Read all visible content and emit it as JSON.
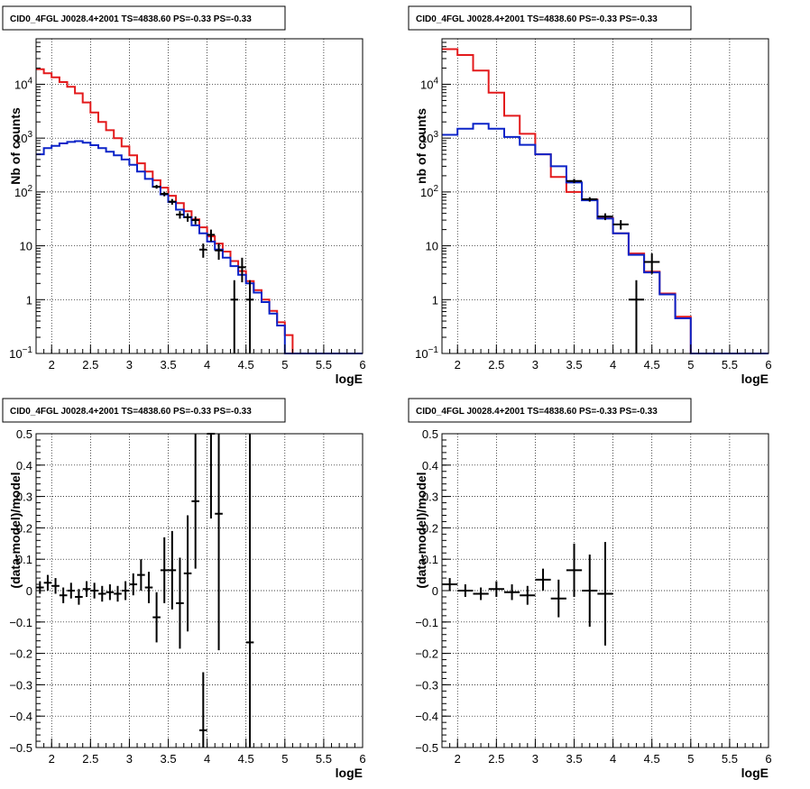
{
  "chart_data": [
    {
      "id": "counts-left",
      "type": "line",
      "title": "CID0_4FGL J0028.4+2001 TS=4838.60 PS=-0.33 PS=-0.33",
      "xlabel": "logE",
      "ylabel": "Nb of counts",
      "xlim": [
        1.8,
        6.0
      ],
      "ylim": [
        0.1,
        70000
      ],
      "yscale": "log",
      "grid": true,
      "xticks": [
        2,
        2.5,
        3,
        3.5,
        4,
        4.5,
        5,
        5.5,
        6
      ],
      "xtick_labels": [
        "2",
        "2.5",
        "3",
        "3.5",
        "4",
        "4.5",
        "5",
        "5.5",
        "6"
      ],
      "yticks": [
        0.1,
        1,
        10,
        100,
        1000,
        10000
      ],
      "ytick_labels": [
        "10^-1",
        "1",
        "10",
        "10^2",
        "10^3",
        "10^4"
      ],
      "series": [
        {
          "color": "#e31a1c",
          "edges": [
            1.8,
            1.9,
            2.0,
            2.1,
            2.2,
            2.3,
            2.4,
            2.5,
            2.6,
            2.7,
            2.8,
            2.9,
            3.0,
            3.1,
            3.2,
            3.3,
            3.4,
            3.5,
            3.6,
            3.7,
            3.8,
            3.9,
            4.0,
            4.1,
            4.2,
            4.3,
            4.4,
            4.5,
            4.6,
            4.7,
            4.8,
            4.9,
            5.0,
            5.1,
            5.2,
            5.3,
            5.4,
            5.5,
            5.6,
            5.7,
            5.8,
            5.9,
            6.0
          ],
          "values": [
            19000,
            16000,
            13500,
            11000,
            9000,
            6800,
            4600,
            3000,
            2000,
            1400,
            1000,
            700,
            480,
            340,
            240,
            165,
            120,
            85,
            62,
            44,
            31,
            22,
            15,
            11,
            7.8,
            5.2,
            3.4,
            2.2,
            1.5,
            1.0,
            0.62,
            0.38,
            0.22,
            0.1,
            0.1,
            0.1,
            0.1,
            0.1,
            0.1,
            0.1,
            0.1,
            0.1
          ]
        },
        {
          "color": "#0b23c8",
          "edges": [
            1.8,
            1.9,
            2.0,
            2.1,
            2.2,
            2.3,
            2.4,
            2.5,
            2.6,
            2.7,
            2.8,
            2.9,
            3.0,
            3.1,
            3.2,
            3.3,
            3.4,
            3.5,
            3.6,
            3.7,
            3.8,
            3.9,
            4.0,
            4.1,
            4.2,
            4.3,
            4.4,
            4.5,
            4.6,
            4.7,
            4.8,
            4.9,
            5.0,
            5.1,
            5.2,
            5.3,
            5.4,
            5.5,
            5.6,
            5.7,
            5.8,
            5.9,
            6.0
          ],
          "values": [
            500,
            650,
            720,
            800,
            850,
            880,
            820,
            740,
            650,
            560,
            480,
            400,
            320,
            240,
            175,
            125,
            90,
            65,
            47,
            34,
            24,
            17,
            12,
            8.5,
            6,
            4.2,
            2.9,
            2.0,
            1.35,
            0.9,
            0.55,
            0.33,
            0.1,
            0.1,
            0.1,
            0.1,
            0.1,
            0.1,
            0.1,
            0.1,
            0.1,
            0.1
          ]
        }
      ],
      "points": [
        {
          "x": 3.35,
          "y": 125,
          "xerr": 0.05,
          "ylo": 115,
          "yhi": 135
        },
        {
          "x": 3.45,
          "y": 92,
          "xerr": 0.05,
          "ylo": 83,
          "yhi": 101
        },
        {
          "x": 3.55,
          "y": 66,
          "xerr": 0.05,
          "ylo": 58,
          "yhi": 74
        },
        {
          "x": 3.65,
          "y": 38,
          "xerr": 0.05,
          "ylo": 32,
          "yhi": 44
        },
        {
          "x": 3.75,
          "y": 34,
          "xerr": 0.05,
          "ylo": 28,
          "yhi": 40
        },
        {
          "x": 3.85,
          "y": 30,
          "xerr": 0.05,
          "ylo": 25,
          "yhi": 35
        },
        {
          "x": 3.95,
          "y": 8.5,
          "xerr": 0.05,
          "ylo": 6.0,
          "yhi": 11
        },
        {
          "x": 4.05,
          "y": 16,
          "xerr": 0.05,
          "ylo": 12,
          "yhi": 20
        },
        {
          "x": 4.15,
          "y": 8.2,
          "xerr": 0.05,
          "ylo": 5.5,
          "yhi": 11
        },
        {
          "x": 4.35,
          "y": 1.0,
          "xerr": 0.05,
          "ylo": 0.1,
          "yhi": 2.3
        },
        {
          "x": 4.45,
          "y": 4.0,
          "xerr": 0.05,
          "ylo": 2.1,
          "yhi": 6.0
        },
        {
          "x": 4.55,
          "y": 1.0,
          "xerr": 0.05,
          "ylo": 0.1,
          "yhi": 2.3
        }
      ]
    },
    {
      "id": "counts-right",
      "type": "line",
      "title": "CID0_4FGL J0028.4+2001 TS=4838.60 PS=-0.33 PS=-0.33",
      "xlabel": "logE",
      "ylabel": "nb of counts",
      "xlim": [
        1.8,
        6.0
      ],
      "ylim": [
        0.1,
        70000
      ],
      "yscale": "log",
      "grid": true,
      "xticks": [
        2,
        2.5,
        3,
        3.5,
        4,
        4.5,
        5,
        5.5,
        6
      ],
      "xtick_labels": [
        "2",
        "2.5",
        "3",
        "3.5",
        "4",
        "4.5",
        "5",
        "5.5",
        "6"
      ],
      "yticks": [
        0.1,
        1,
        10,
        100,
        1000,
        10000
      ],
      "ytick_labels": [
        "10^-1",
        "1",
        "10",
        "10^2",
        "10^3",
        "10^4"
      ],
      "series": [
        {
          "color": "#e31a1c",
          "edges": [
            1.8,
            2.0,
            2.2,
            2.4,
            2.6,
            2.8,
            3.0,
            3.2,
            3.4,
            3.6,
            3.8,
            4.0,
            4.2,
            4.4,
            4.6,
            4.8,
            5.0,
            5.2,
            5.4,
            5.6,
            5.8,
            6.0
          ],
          "values": [
            45000,
            35000,
            18000,
            7000,
            2600,
            1200,
            500,
            190,
            100,
            72,
            33,
            17,
            7.2,
            3.3,
            1.3,
            0.48,
            0.1,
            0.1,
            0.1,
            0.1,
            0.1
          ]
        },
        {
          "color": "#0b23c8",
          "edges": [
            1.8,
            2.0,
            2.2,
            2.4,
            2.6,
            2.8,
            3.0,
            3.2,
            3.4,
            3.6,
            3.8,
            4.0,
            4.2,
            4.4,
            4.6,
            4.8,
            5.0,
            5.2,
            5.4,
            5.6,
            5.8,
            6.0
          ],
          "values": [
            1150,
            1500,
            1850,
            1500,
            1050,
            750,
            500,
            300,
            150,
            70,
            32,
            17,
            6.8,
            3.2,
            1.25,
            0.45,
            0.1,
            0.1,
            0.1,
            0.1,
            0.1
          ]
        }
      ],
      "points": [
        {
          "x": 3.5,
          "y": 160,
          "xerr": 0.1,
          "ylo": 145,
          "yhi": 175
        },
        {
          "x": 3.7,
          "y": 73,
          "xerr": 0.1,
          "ylo": 66,
          "yhi": 80
        },
        {
          "x": 3.9,
          "y": 35,
          "xerr": 0.1,
          "ylo": 30,
          "yhi": 40
        },
        {
          "x": 4.1,
          "y": 25,
          "xerr": 0.1,
          "ylo": 20,
          "yhi": 30
        },
        {
          "x": 4.3,
          "y": 1.0,
          "xerr": 0.1,
          "ylo": 0.1,
          "yhi": 2.3
        },
        {
          "x": 4.5,
          "y": 5.0,
          "xerr": 0.1,
          "ylo": 3.0,
          "yhi": 7.2
        }
      ]
    },
    {
      "id": "residual-left",
      "type": "scatter",
      "title": "CID0_4FGL J0028.4+2001 TS=4838.60 PS=-0.33 PS=-0.33",
      "xlabel": "logE",
      "ylabel": "(data-model)/model",
      "xlim": [
        1.8,
        6.0
      ],
      "ylim": [
        -0.5,
        0.5
      ],
      "yscale": "linear",
      "grid": true,
      "xticks": [
        2,
        2.5,
        3,
        3.5,
        4,
        4.5,
        5,
        5.5,
        6
      ],
      "xtick_labels": [
        "2",
        "2.5",
        "3",
        "3.5",
        "4",
        "4.5",
        "5",
        "5.5",
        "6"
      ],
      "yticks": [
        -0.5,
        -0.4,
        -0.3,
        -0.2,
        -0.1,
        0,
        0.1,
        0.2,
        0.3,
        0.4,
        0.5
      ],
      "ytick_labels": [
        "-0.5",
        "-0.4",
        "-0.3",
        "-0.2",
        "-0.1",
        "0",
        "0.1",
        "0.2",
        "0.3",
        "0.4",
        "0.5"
      ],
      "points": [
        {
          "x": 1.85,
          "y": 0.01,
          "xerr": 0.05,
          "ylo": -0.01,
          "yhi": 0.03
        },
        {
          "x": 1.95,
          "y": 0.025,
          "xerr": 0.05,
          "ylo": 0.0,
          "yhi": 0.05
        },
        {
          "x": 2.05,
          "y": 0.015,
          "xerr": 0.05,
          "ylo": -0.01,
          "yhi": 0.04
        },
        {
          "x": 2.15,
          "y": -0.015,
          "xerr": 0.05,
          "ylo": -0.04,
          "yhi": 0.01
        },
        {
          "x": 2.25,
          "y": 0.0,
          "xerr": 0.05,
          "ylo": -0.025,
          "yhi": 0.025
        },
        {
          "x": 2.35,
          "y": -0.02,
          "xerr": 0.05,
          "ylo": -0.045,
          "yhi": 0.005
        },
        {
          "x": 2.45,
          "y": 0.005,
          "xerr": 0.05,
          "ylo": -0.02,
          "yhi": 0.03
        },
        {
          "x": 2.55,
          "y": 0.0,
          "xerr": 0.05,
          "ylo": -0.025,
          "yhi": 0.025
        },
        {
          "x": 2.65,
          "y": -0.01,
          "xerr": 0.05,
          "ylo": -0.035,
          "yhi": 0.015
        },
        {
          "x": 2.75,
          "y": -0.005,
          "xerr": 0.05,
          "ylo": -0.03,
          "yhi": 0.02
        },
        {
          "x": 2.85,
          "y": -0.01,
          "xerr": 0.05,
          "ylo": -0.035,
          "yhi": 0.015
        },
        {
          "x": 2.95,
          "y": 0.0,
          "xerr": 0.05,
          "ylo": -0.03,
          "yhi": 0.03
        },
        {
          "x": 3.05,
          "y": 0.02,
          "xerr": 0.05,
          "ylo": -0.015,
          "yhi": 0.055
        },
        {
          "x": 3.15,
          "y": 0.05,
          "xerr": 0.05,
          "ylo": 0.0,
          "yhi": 0.1
        },
        {
          "x": 3.25,
          "y": 0.01,
          "xerr": 0.05,
          "ylo": -0.04,
          "yhi": 0.06
        },
        {
          "x": 3.35,
          "y": -0.085,
          "xerr": 0.05,
          "ylo": -0.165,
          "yhi": -0.005
        },
        {
          "x": 3.45,
          "y": 0.065,
          "xerr": 0.05,
          "ylo": -0.04,
          "yhi": 0.17
        },
        {
          "x": 3.55,
          "y": 0.065,
          "xerr": 0.05,
          "ylo": -0.06,
          "yhi": 0.19
        },
        {
          "x": 3.65,
          "y": -0.04,
          "xerr": 0.05,
          "ylo": -0.185,
          "yhi": 0.105
        },
        {
          "x": 3.75,
          "y": 0.055,
          "xerr": 0.05,
          "ylo": -0.13,
          "yhi": 0.24
        },
        {
          "x": 3.85,
          "y": 0.285,
          "xerr": 0.05,
          "ylo": 0.07,
          "yhi": 0.5
        },
        {
          "x": 3.95,
          "y": -0.445,
          "xerr": 0.05,
          "ylo": -0.5,
          "yhi": -0.26
        },
        {
          "x": 4.05,
          "y": 0.5,
          "xerr": 0.05,
          "ylo": 0.23,
          "yhi": 0.5
        },
        {
          "x": 4.15,
          "y": 0.245,
          "xerr": 0.05,
          "ylo": -0.19,
          "yhi": 0.5
        },
        {
          "x": 4.55,
          "y": -0.165,
          "xerr": 0.05,
          "ylo": -0.5,
          "yhi": 0.5
        }
      ]
    },
    {
      "id": "residual-right",
      "type": "scatter",
      "title": "CID0_4FGL J0028.4+2001 TS=4838.60 PS=-0.33 PS=-0.33",
      "xlabel": "logE",
      "ylabel": "(data-model)/model",
      "xlim": [
        1.8,
        6.0
      ],
      "ylim": [
        -0.5,
        0.5
      ],
      "yscale": "linear",
      "grid": true,
      "xticks": [
        2,
        2.5,
        3,
        3.5,
        4,
        4.5,
        5,
        5.5,
        6
      ],
      "xtick_labels": [
        "2",
        "2.5",
        "3",
        "3.5",
        "4",
        "4.5",
        "5",
        "5.5",
        "6"
      ],
      "yticks": [
        -0.5,
        -0.4,
        -0.3,
        -0.2,
        -0.1,
        0,
        0.1,
        0.2,
        0.3,
        0.4,
        0.5
      ],
      "ytick_labels": [
        "-0.5",
        "-0.4",
        "-0.3",
        "-0.2",
        "-0.1",
        "0",
        "0.1",
        "0.2",
        "0.3",
        "0.4",
        "0.5"
      ],
      "points": [
        {
          "x": 1.9,
          "y": 0.02,
          "xerr": 0.1,
          "ylo": 0.0,
          "yhi": 0.04
        },
        {
          "x": 2.1,
          "y": 0.0,
          "xerr": 0.1,
          "ylo": -0.02,
          "yhi": 0.02
        },
        {
          "x": 2.3,
          "y": -0.01,
          "xerr": 0.1,
          "ylo": -0.03,
          "yhi": 0.01
        },
        {
          "x": 2.5,
          "y": 0.005,
          "xerr": 0.1,
          "ylo": -0.02,
          "yhi": 0.03
        },
        {
          "x": 2.7,
          "y": -0.005,
          "xerr": 0.1,
          "ylo": -0.03,
          "yhi": 0.02
        },
        {
          "x": 2.9,
          "y": -0.015,
          "xerr": 0.1,
          "ylo": -0.045,
          "yhi": 0.015
        },
        {
          "x": 3.1,
          "y": 0.035,
          "xerr": 0.1,
          "ylo": 0.0,
          "yhi": 0.07
        },
        {
          "x": 3.3,
          "y": -0.025,
          "xerr": 0.1,
          "ylo": -0.085,
          "yhi": 0.035
        },
        {
          "x": 3.5,
          "y": 0.065,
          "xerr": 0.1,
          "ylo": -0.02,
          "yhi": 0.15
        },
        {
          "x": 3.7,
          "y": 0.0,
          "xerr": 0.1,
          "ylo": -0.115,
          "yhi": 0.115
        },
        {
          "x": 3.9,
          "y": -0.01,
          "xerr": 0.1,
          "ylo": -0.175,
          "yhi": 0.155
        }
      ]
    }
  ]
}
